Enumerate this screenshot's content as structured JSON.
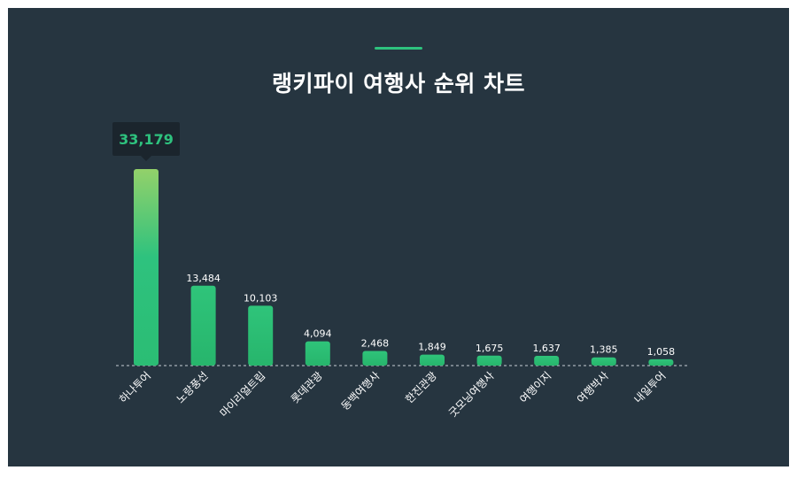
{
  "title": "랭키파이 여행사 순위 차트",
  "colors": {
    "background": "#263540",
    "accent": "#2ec27e",
    "bar_top_highlight": "#93d16a",
    "text": "#ffffff",
    "tooltip_bg": "#1b252d"
  },
  "chart_data": {
    "type": "bar",
    "title": "랭키파이 여행사 순위 차트",
    "categories": [
      "하나투어",
      "노랑풍선",
      "마이리얼트립",
      "롯데관광",
      "동백여행사",
      "한진관광",
      "굿모닝여행사",
      "여행이지",
      "여행박사",
      "내일투어"
    ],
    "values": [
      33179,
      13484,
      10103,
      4094,
      2468,
      1849,
      1675,
      1637,
      1385,
      1058
    ],
    "value_labels": [
      "33,179",
      "13,484",
      "10,103",
      "4,094",
      "2,468",
      "1,849",
      "1,675",
      "1,637",
      "1,385",
      "1,058"
    ],
    "highlight_index": 0,
    "xlabel": "",
    "ylabel": "",
    "ylim": [
      0,
      33179
    ],
    "grid": false,
    "legend": "none"
  }
}
